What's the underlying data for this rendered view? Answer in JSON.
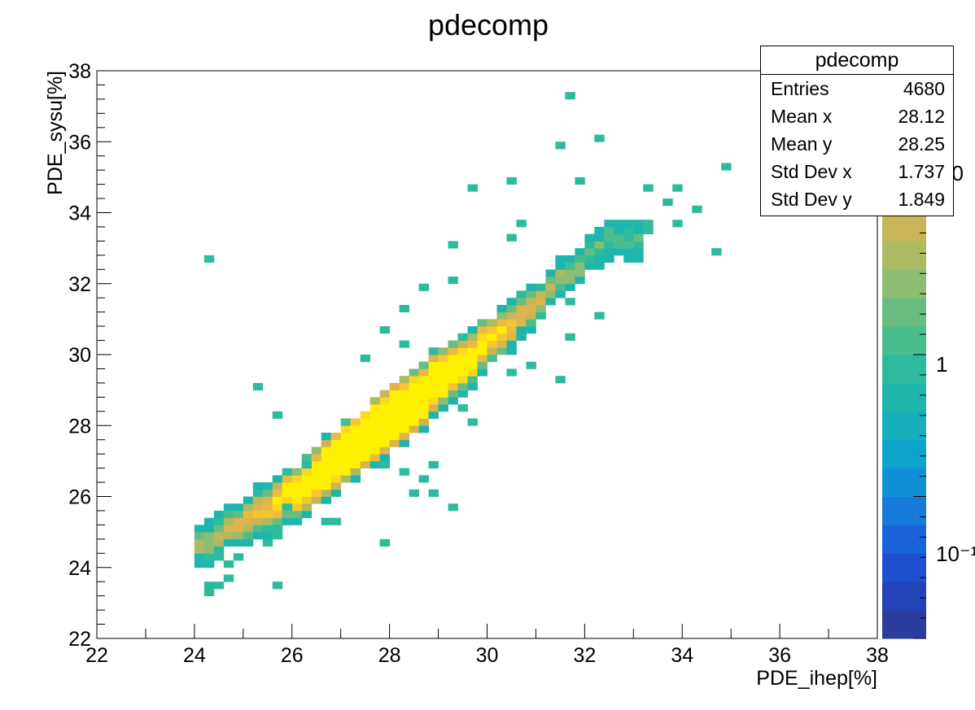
{
  "chart_data": {
    "type": "heatmap",
    "title": "pdecomp",
    "xlabel": "PDE_ihep[%]",
    "ylabel": "PDE_sysu[%]",
    "xlim": [
      22,
      38
    ],
    "ylim": [
      22,
      38
    ],
    "z_scale": "log",
    "x_tick_labels": [
      "22",
      "24",
      "26",
      "28",
      "30",
      "32",
      "34",
      "36",
      "38"
    ],
    "y_tick_labels": [
      "22",
      "24",
      "26",
      "28",
      "30",
      "32",
      "34",
      "36",
      "38"
    ],
    "colorbar_labels": [
      "10⁻¹",
      "1",
      "10"
    ],
    "bin_width": 0.2,
    "stats": {
      "title": "pdecomp",
      "rows": [
        {
          "label": "Entries",
          "value": "4680"
        },
        {
          "label": "Mean x",
          "value": "28.12"
        },
        {
          "label": "Mean y",
          "value": "28.25"
        },
        {
          "label": "Std Dev x",
          "value": "1.737"
        },
        {
          "label": "Std Dev y",
          "value": "1.849"
        }
      ]
    },
    "outliers": [
      [
        24.1,
        32.5
      ],
      [
        24.1,
        23.1
      ],
      [
        24.1,
        23.3
      ],
      [
        24.3,
        23.3
      ],
      [
        24.7,
        23.5
      ],
      [
        25.7,
        23.3
      ],
      [
        25.1,
        29.0
      ],
      [
        25.7,
        28.1
      ],
      [
        26.1,
        26.9
      ],
      [
        27.3,
        29.8
      ],
      [
        27.9,
        24.7
      ],
      [
        27.9,
        30.7
      ],
      [
        28.1,
        30.1
      ],
      [
        28.1,
        31.2
      ],
      [
        28.5,
        31.8
      ],
      [
        29.1,
        32.0
      ],
      [
        29.1,
        33.0
      ],
      [
        29.7,
        34.5
      ],
      [
        30.3,
        33.3
      ],
      [
        30.3,
        34.8
      ],
      [
        31.3,
        35.7
      ],
      [
        31.7,
        37.1
      ],
      [
        32.1,
        36.0
      ],
      [
        31.9,
        34.8
      ],
      [
        33.3,
        34.6
      ],
      [
        33.7,
        34.6
      ],
      [
        33.5,
        34.3
      ],
      [
        34.1,
        34.0
      ],
      [
        34.9,
        35.2
      ],
      [
        34.5,
        32.9
      ],
      [
        33.1,
        33.6
      ],
      [
        33.3,
        33.4
      ],
      [
        33.9,
        33.5
      ],
      [
        31.7,
        31.3
      ],
      [
        32.3,
        31.0
      ],
      [
        31.5,
        30.3
      ],
      [
        30.9,
        29.6
      ],
      [
        30.3,
        29.3
      ],
      [
        31.3,
        29.2
      ],
      [
        29.7,
        28.0
      ],
      [
        29.3,
        28.4
      ],
      [
        28.9,
        26.9
      ],
      [
        28.5,
        26.3
      ],
      [
        28.3,
        26.0
      ],
      [
        29.1,
        25.7
      ],
      [
        28.9,
        26.0
      ],
      [
        28.1,
        26.6
      ],
      [
        27.9,
        26.8
      ],
      [
        26.9,
        25.1
      ],
      [
        25.9,
        25.5
      ],
      [
        26.5,
        25.2
      ],
      [
        25.3,
        24.5
      ],
      [
        25.7,
        24.8
      ],
      [
        24.3,
        24.2
      ],
      [
        24.5,
        24.0
      ],
      [
        24.9,
        24.2
      ],
      [
        25.5,
        25.0
      ],
      [
        30.7,
        33.6
      ]
    ],
    "core_band": {
      "centerline": [
        [
          24.1,
          24.6
        ],
        [
          26.0,
          26.1
        ],
        [
          28.0,
          28.2
        ],
        [
          30.0,
          30.3
        ],
        [
          32.4,
          33.2
        ]
      ],
      "x_range": [
        24.0,
        33.0
      ],
      "half_width_y": 0.9
    }
  }
}
